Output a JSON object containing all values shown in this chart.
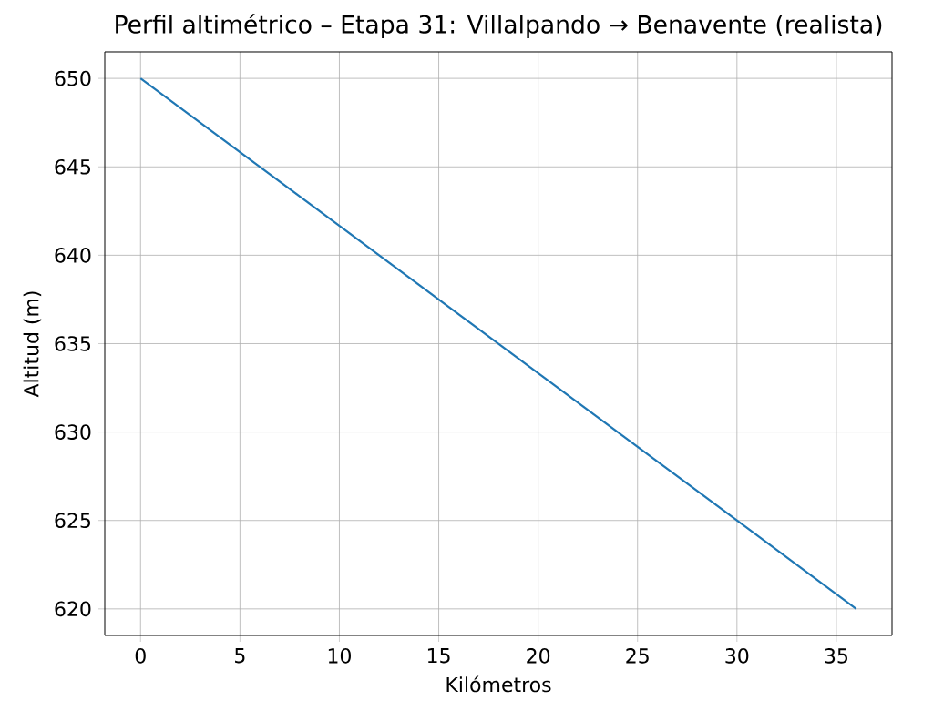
{
  "chart_data": {
    "type": "line",
    "title": "Perfil altimétrico – Etapa 31: Villalpando → Benavente (realista)",
    "xlabel": "Kilómetros",
    "ylabel": "Altitud (m)",
    "x": [
      0,
      36
    ],
    "values": [
      650,
      620
    ],
    "color": "#1f77b4",
    "xlim": [
      -1.8,
      37.8
    ],
    "ylim": [
      618.5,
      651.5
    ],
    "xticks": [
      0,
      5,
      10,
      15,
      20,
      25,
      30,
      35
    ],
    "yticks": [
      620,
      625,
      630,
      635,
      640,
      645,
      650
    ],
    "grid": true
  }
}
